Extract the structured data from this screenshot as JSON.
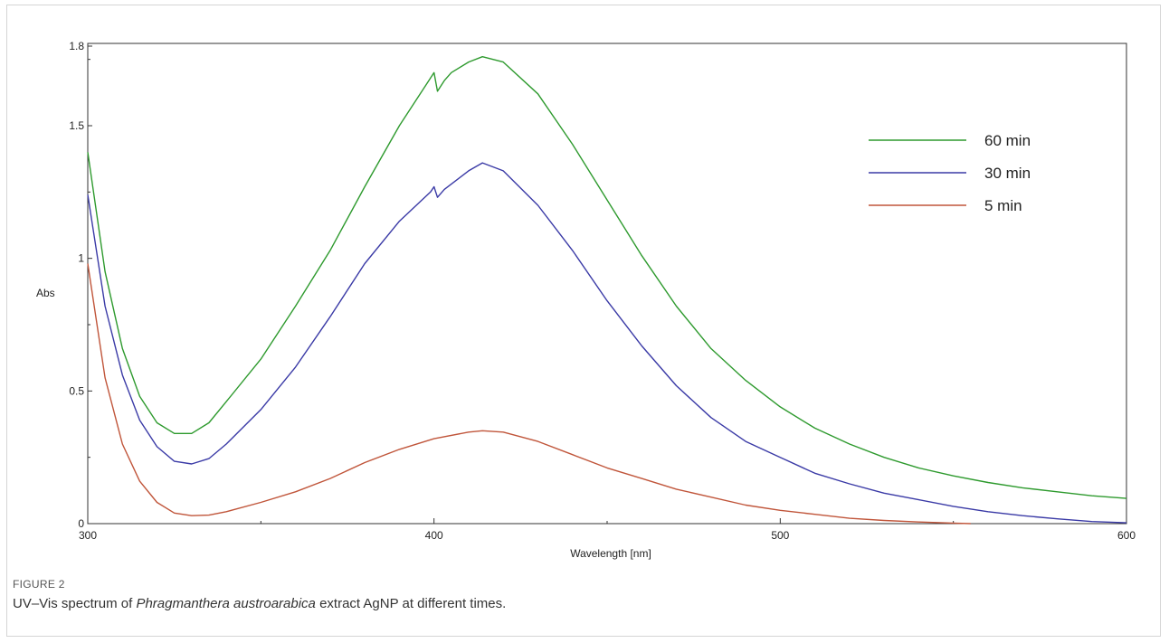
{
  "chart_data": {
    "type": "line",
    "title": "",
    "xlabel": "Wavelength [nm]",
    "ylabel": "Abs",
    "xlim": [
      300,
      600
    ],
    "ylim": [
      0,
      1.85
    ],
    "x_ticks": [
      300,
      400,
      500,
      600
    ],
    "x_tick_labels": [
      "300",
      "400",
      "500",
      "600"
    ],
    "y_ticks": [
      0,
      0.5,
      1,
      1.5,
      1.8
    ],
    "y_tick_labels": [
      "0",
      "0.5",
      "1",
      "1.5",
      "1.8"
    ],
    "grid": false,
    "legend_position": "top-right",
    "series": [
      {
        "name": "60 min",
        "color": "#2e9a2e",
        "points": [
          [
            300,
            1.4
          ],
          [
            305,
            0.95
          ],
          [
            310,
            0.66
          ],
          [
            315,
            0.48
          ],
          [
            320,
            0.38
          ],
          [
            325,
            0.34
          ],
          [
            330,
            0.34
          ],
          [
            335,
            0.38
          ],
          [
            340,
            0.46
          ],
          [
            350,
            0.62
          ],
          [
            360,
            0.82
          ],
          [
            370,
            1.03
          ],
          [
            380,
            1.27
          ],
          [
            390,
            1.5
          ],
          [
            398,
            1.66
          ],
          [
            400,
            1.7
          ],
          [
            401,
            1.63
          ],
          [
            403,
            1.67
          ],
          [
            405,
            1.7
          ],
          [
            410,
            1.74
          ],
          [
            414,
            1.76
          ],
          [
            420,
            1.74
          ],
          [
            430,
            1.62
          ],
          [
            440,
            1.43
          ],
          [
            450,
            1.22
          ],
          [
            460,
            1.01
          ],
          [
            470,
            0.82
          ],
          [
            480,
            0.66
          ],
          [
            490,
            0.54
          ],
          [
            500,
            0.44
          ],
          [
            510,
            0.36
          ],
          [
            520,
            0.3
          ],
          [
            530,
            0.25
          ],
          [
            540,
            0.21
          ],
          [
            550,
            0.18
          ],
          [
            560,
            0.155
          ],
          [
            570,
            0.135
          ],
          [
            580,
            0.12
          ],
          [
            590,
            0.105
          ],
          [
            600,
            0.095
          ]
        ]
      },
      {
        "name": "30 min",
        "color": "#3a3aa6",
        "points": [
          [
            300,
            1.24
          ],
          [
            305,
            0.82
          ],
          [
            310,
            0.56
          ],
          [
            315,
            0.39
          ],
          [
            320,
            0.29
          ],
          [
            325,
            0.235
          ],
          [
            330,
            0.225
          ],
          [
            335,
            0.245
          ],
          [
            340,
            0.3
          ],
          [
            350,
            0.43
          ],
          [
            360,
            0.59
          ],
          [
            370,
            0.78
          ],
          [
            380,
            0.98
          ],
          [
            390,
            1.14
          ],
          [
            399,
            1.25
          ],
          [
            400,
            1.27
          ],
          [
            401,
            1.23
          ],
          [
            403,
            1.26
          ],
          [
            410,
            1.33
          ],
          [
            414,
            1.36
          ],
          [
            420,
            1.33
          ],
          [
            430,
            1.2
          ],
          [
            440,
            1.03
          ],
          [
            450,
            0.84
          ],
          [
            460,
            0.67
          ],
          [
            470,
            0.52
          ],
          [
            480,
            0.4
          ],
          [
            490,
            0.31
          ],
          [
            500,
            0.25
          ],
          [
            510,
            0.19
          ],
          [
            520,
            0.15
          ],
          [
            530,
            0.115
          ],
          [
            540,
            0.09
          ],
          [
            550,
            0.065
          ],
          [
            560,
            0.045
          ],
          [
            570,
            0.03
          ],
          [
            580,
            0.018
          ],
          [
            590,
            0.008
          ],
          [
            600,
            0.003
          ]
        ]
      },
      {
        "name": "5 min",
        "color": "#c0553a",
        "points": [
          [
            300,
            0.98
          ],
          [
            305,
            0.55
          ],
          [
            310,
            0.3
          ],
          [
            315,
            0.16
          ],
          [
            320,
            0.08
          ],
          [
            325,
            0.04
          ],
          [
            330,
            0.03
          ],
          [
            335,
            0.032
          ],
          [
            340,
            0.045
          ],
          [
            350,
            0.08
          ],
          [
            360,
            0.12
          ],
          [
            370,
            0.17
          ],
          [
            380,
            0.23
          ],
          [
            390,
            0.28
          ],
          [
            400,
            0.32
          ],
          [
            410,
            0.345
          ],
          [
            414,
            0.35
          ],
          [
            420,
            0.345
          ],
          [
            430,
            0.31
          ],
          [
            440,
            0.26
          ],
          [
            450,
            0.21
          ],
          [
            460,
            0.17
          ],
          [
            470,
            0.13
          ],
          [
            480,
            0.1
          ],
          [
            490,
            0.07
          ],
          [
            500,
            0.05
          ],
          [
            510,
            0.035
          ],
          [
            520,
            0.02
          ],
          [
            530,
            0.012
          ],
          [
            540,
            0.006
          ],
          [
            550,
            0.002
          ],
          [
            555,
            0.0
          ]
        ]
      }
    ]
  },
  "caption": {
    "figure_label": "FIGURE 2",
    "text_before": "UV–Vis spectrum of ",
    "text_italic": "Phragmanthera austroarabica",
    "text_after": " extract AgNP at different times."
  }
}
